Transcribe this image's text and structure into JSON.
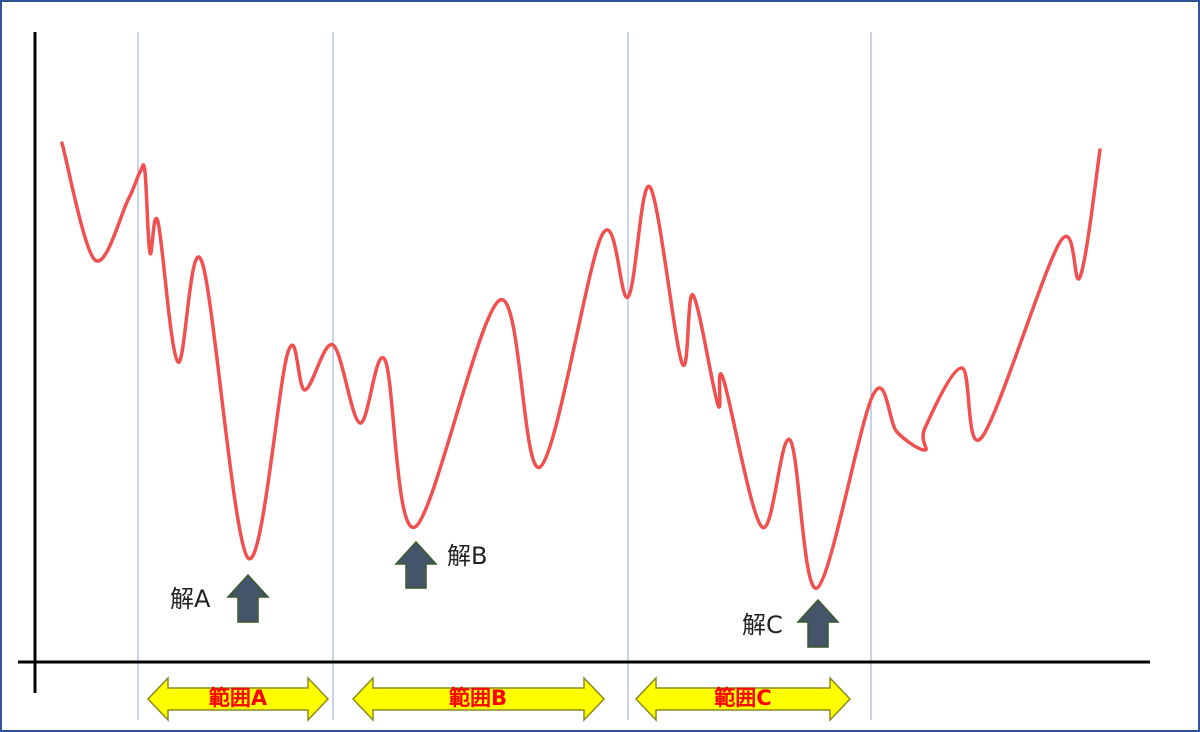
{
  "solutions": [
    "解A",
    "解B",
    "解C"
  ],
  "ranges": [
    "範囲A",
    "範囲B",
    "範囲C"
  ]
}
